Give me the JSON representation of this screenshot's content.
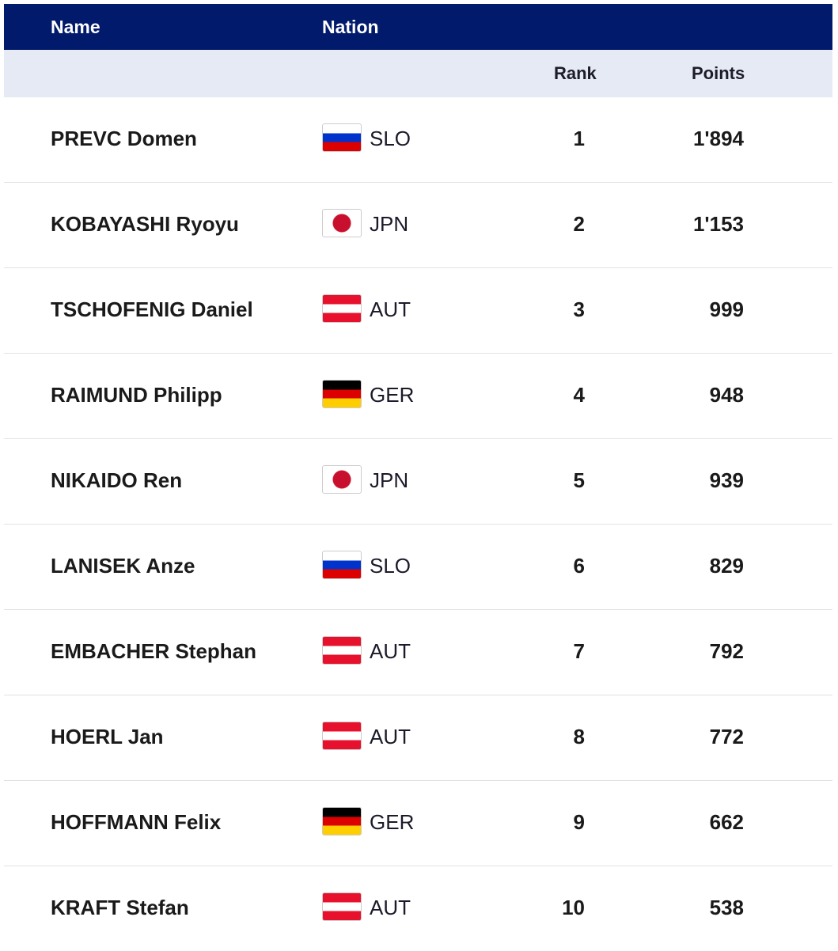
{
  "header": {
    "name": "Name",
    "nation": "Nation",
    "rank": "Rank",
    "points": "Points"
  },
  "flag_colors": {
    "SLO": [
      "#ffffff",
      "#0033cc",
      "#dd0000"
    ],
    "JPN": [
      "#ffffff",
      "#c8102e"
    ],
    "AUT": [
      "#e8112d",
      "#ffffff",
      "#e8112d"
    ],
    "GER": [
      "#000000",
      "#dd0000",
      "#ffce00"
    ]
  },
  "rows": [
    {
      "name": "PREVC Domen",
      "nation": "SLO",
      "rank": "1",
      "points": "1'894"
    },
    {
      "name": "KOBAYASHI Ryoyu",
      "nation": "JPN",
      "rank": "2",
      "points": "1'153"
    },
    {
      "name": "TSCHOFENIG Daniel",
      "nation": "AUT",
      "rank": "3",
      "points": "999"
    },
    {
      "name": "RAIMUND Philipp",
      "nation": "GER",
      "rank": "4",
      "points": "948"
    },
    {
      "name": "NIKAIDO Ren",
      "nation": "JPN",
      "rank": "5",
      "points": "939"
    },
    {
      "name": "LANISEK Anze",
      "nation": "SLO",
      "rank": "6",
      "points": "829"
    },
    {
      "name": "EMBACHER Stephan",
      "nation": "AUT",
      "rank": "7",
      "points": "792"
    },
    {
      "name": "HOERL Jan",
      "nation": "AUT",
      "rank": "8",
      "points": "772"
    },
    {
      "name": "HOFFMANN Felix",
      "nation": "GER",
      "rank": "9",
      "points": "662"
    },
    {
      "name": "KRAFT Stefan",
      "nation": "AUT",
      "rank": "10",
      "points": "538"
    }
  ]
}
